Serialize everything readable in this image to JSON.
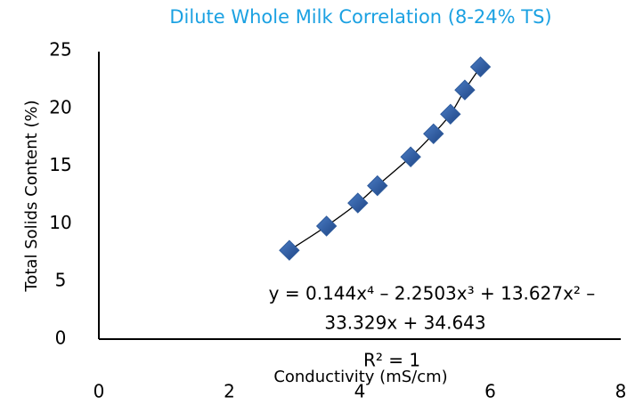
{
  "chart_data": {
    "type": "scatter",
    "title": "Dilute Whole Milk Correlation (8-24% TS)",
    "x_label": "Conductivity (mS/cm)",
    "y_label": "Total Solids Content (%)",
    "annotations": [
      "y = 0.144x⁴ – 2.2503x³ + 13.627x² –",
      "33.329x + 34.643",
      "R² = 1"
    ],
    "x": [
      2.92,
      3.49,
      3.97,
      4.27,
      4.78,
      5.13,
      5.39,
      5.61,
      5.85
    ],
    "values": [
      7.7,
      9.8,
      11.8,
      13.3,
      15.8,
      17.8,
      19.5,
      21.6,
      23.6
    ],
    "color": "#2e5b9c",
    "trendline": true,
    "xlim": [
      0,
      8
    ],
    "xticks": [
      0,
      2,
      4,
      6,
      8
    ],
    "ylim": [
      0,
      25
    ],
    "yticks": [
      0,
      5,
      10,
      15,
      20,
      25
    ],
    "grid": false
  }
}
